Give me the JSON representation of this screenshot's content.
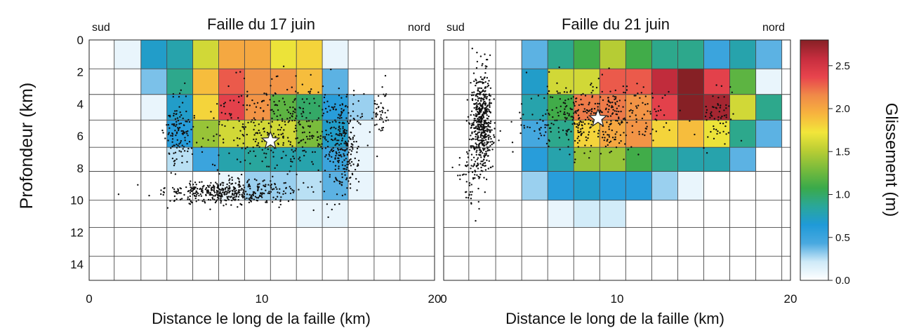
{
  "figure": {
    "ylabel": "Profondeur (km)",
    "colorbar": {
      "label": "Glissement (m)",
      "ticks": [
        "2.5",
        "2.0",
        "1.5",
        "1.0",
        "0.5",
        "0.0"
      ],
      "tick_values": [
        2.5,
        2.0,
        1.5,
        1.0,
        0.5,
        0.0
      ],
      "range": [
        0,
        2.8
      ],
      "colors": [
        "#ffffff",
        "#cfeaf8",
        "#49a9e0",
        "#1f9ad8",
        "#2aa79a",
        "#3aaa4a",
        "#78bb3c",
        "#b8cd34",
        "#f2e63a",
        "#f7b43e",
        "#f08a48",
        "#e8444d",
        "#c62d3e",
        "#862025"
      ]
    }
  },
  "chart_data": [
    {
      "type": "heatmap",
      "title": "Faille du 17 juin",
      "corner_left": "sud",
      "corner_right": "nord",
      "xlabel": "Distance le long de la faille (km)",
      "ylabel": "Profondeur (km)",
      "xlim": [
        0,
        20
      ],
      "ylim": [
        15,
        0
      ],
      "xticks": [
        "0",
        "10",
        "20"
      ],
      "xtick_values": [
        0,
        10,
        20
      ],
      "yticks": [
        "0",
        "2",
        "4",
        "6",
        "8",
        "10",
        "12",
        "14"
      ],
      "ytick_values": [
        0,
        2,
        4,
        6,
        8,
        10,
        12,
        14
      ],
      "x_edges": [
        0,
        1.45,
        3,
        4.5,
        6,
        7.5,
        9,
        10.5,
        12,
        13.5,
        15,
        16.5,
        18
      ],
      "y_edges": [
        0,
        1.8,
        3.4,
        5.0,
        6.7,
        8.2,
        10.0,
        11.7,
        13.5,
        15
      ],
      "slip_m": [
        [
          0,
          0.1,
          0.7,
          0.8,
          1.6,
          2.0,
          2.0,
          1.7,
          1.8,
          0.1,
          0,
          0
        ],
        [
          0,
          0,
          0.35,
          0.9,
          1.9,
          2.3,
          2.1,
          2.1,
          1.9,
          0.4,
          0,
          0
        ],
        [
          0,
          0,
          0.1,
          0.7,
          1.8,
          2.4,
          2.1,
          1.2,
          1.0,
          0.6,
          0.3,
          0
        ],
        [
          0,
          0,
          0,
          0.6,
          1.4,
          1.6,
          1.6,
          1.6,
          1.3,
          0.7,
          0.1,
          0
        ],
        [
          0,
          0,
          0,
          0.25,
          0.5,
          0.8,
          0.85,
          0.8,
          0.8,
          0.5,
          0.1,
          0
        ],
        [
          0,
          0,
          0,
          0,
          0,
          0.1,
          0.3,
          0.3,
          0.25,
          0.4,
          0.1,
          0
        ],
        [
          0,
          0,
          0,
          0,
          0,
          0,
          0,
          0,
          0.1,
          0.1,
          0,
          0
        ],
        [
          0,
          0,
          0,
          0,
          0,
          0,
          0,
          0,
          0,
          0,
          0,
          0
        ],
        [
          0,
          0,
          0,
          0,
          0,
          0,
          0,
          0,
          0,
          0,
          0,
          0
        ]
      ],
      "hypocenter": {
        "x": 10.5,
        "y": 6.3
      },
      "seismicity": {
        "note_free": true,
        "clusters": [
          {
            "x": 8,
            "y": 9.5,
            "sx": 3.0,
            "sy": 0.6,
            "n": 420
          },
          {
            "x": 11,
            "y": 5.5,
            "sx": 3.5,
            "sy": 2.6,
            "n": 380
          },
          {
            "x": 14.7,
            "y": 6.5,
            "sx": 0.9,
            "sy": 2.6,
            "n": 260
          },
          {
            "x": 5.2,
            "y": 6.0,
            "sx": 0.7,
            "sy": 2.0,
            "n": 120
          },
          {
            "x": 16.8,
            "y": 4.3,
            "sx": 0.5,
            "sy": 1.0,
            "n": 40
          }
        ]
      }
    },
    {
      "type": "heatmap",
      "title": "Faille du 21 juin",
      "corner_left": "sud",
      "corner_right": "nord",
      "xlabel": "Distance le long de la faille (km)",
      "ylabel": "",
      "xlim": [
        0,
        20
      ],
      "ylim": [
        15,
        0
      ],
      "xticks": [
        "0",
        "10",
        "20"
      ],
      "xtick_values": [
        0,
        10,
        20
      ],
      "yticks": [],
      "ytick_values": [],
      "x_edges": [
        0,
        1.45,
        3,
        4.5,
        6,
        7.5,
        9,
        10.5,
        12,
        13.5,
        15,
        16.5,
        18,
        19.5
      ],
      "y_edges": [
        0,
        1.8,
        3.4,
        5.0,
        6.7,
        8.2,
        10.0,
        11.7,
        13.5,
        15
      ],
      "slip_m": [
        [
          0,
          0,
          0,
          0.4,
          0.9,
          1.1,
          1.5,
          1.1,
          0.9,
          0.9,
          0.5,
          0.8,
          0.4
        ],
        [
          0,
          0,
          0,
          0.7,
          1.6,
          1.6,
          2.3,
          2.3,
          2.6,
          2.8,
          2.4,
          1.2,
          0.1
        ],
        [
          0,
          0,
          0,
          0.8,
          1.1,
          2.2,
          2.2,
          2.1,
          2.4,
          2.8,
          2.7,
          1.6,
          0.9
        ],
        [
          0,
          0,
          0,
          0.45,
          0.9,
          1.8,
          2.0,
          2.1,
          1.8,
          1.9,
          1.7,
          0.9,
          0.4
        ],
        [
          0,
          0,
          0,
          0.6,
          0.8,
          1.4,
          1.4,
          1.1,
          0.9,
          0.8,
          0.8,
          0.4,
          0
        ],
        [
          0,
          0,
          0,
          0.3,
          0.6,
          0.7,
          0.6,
          0.6,
          0.3,
          0.1,
          0,
          0,
          0
        ],
        [
          0,
          0,
          0,
          0,
          0.1,
          0.2,
          0.2,
          0,
          0,
          0,
          0,
          0,
          0
        ],
        [
          0,
          0,
          0,
          0,
          0,
          0,
          0,
          0,
          0,
          0,
          0,
          0,
          0
        ],
        [
          0,
          0,
          0,
          0,
          0,
          0,
          0,
          0,
          0,
          0,
          0,
          0,
          0
        ]
      ],
      "hypocenter": {
        "x": 8.9,
        "y": 4.9
      },
      "seismicity": {
        "clusters": [
          {
            "x": 2.2,
            "y": 5.0,
            "sx": 0.5,
            "sy": 2.6,
            "n": 520
          },
          {
            "x": 8.5,
            "y": 4.8,
            "sx": 3.6,
            "sy": 1.8,
            "n": 420
          },
          {
            "x": 1.6,
            "y": 8.5,
            "sx": 0.7,
            "sy": 1.8,
            "n": 60
          },
          {
            "x": 15.8,
            "y": 4.8,
            "sx": 0.8,
            "sy": 1.8,
            "n": 60
          }
        ]
      }
    }
  ]
}
